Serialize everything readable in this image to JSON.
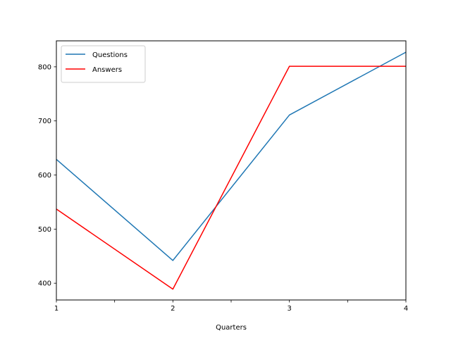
{
  "chart_data": {
    "type": "line",
    "title": "",
    "xlabel": "Quarters",
    "ylabel": "",
    "x": [
      1,
      2,
      3,
      4
    ],
    "xlim": [
      1,
      4
    ],
    "ylim": [
      369,
      848
    ],
    "xticks": [
      1,
      1.5,
      2,
      2.5,
      3,
      3.5,
      4
    ],
    "xtick_labels": [
      "1",
      "",
      "2",
      "",
      "3",
      "",
      "4"
    ],
    "yticks": [
      400,
      500,
      600,
      700,
      800
    ],
    "ytick_labels": [
      "400",
      "500",
      "600",
      "700",
      "800"
    ],
    "grid": false,
    "legend_position": "upper-left",
    "series": [
      {
        "name": "Questions",
        "color": "#1f77b4",
        "values": [
          629,
          442,
          711,
          827
        ]
      },
      {
        "name": "Answers",
        "color": "#ff0000",
        "values": [
          537,
          389,
          801,
          801
        ]
      }
    ]
  }
}
